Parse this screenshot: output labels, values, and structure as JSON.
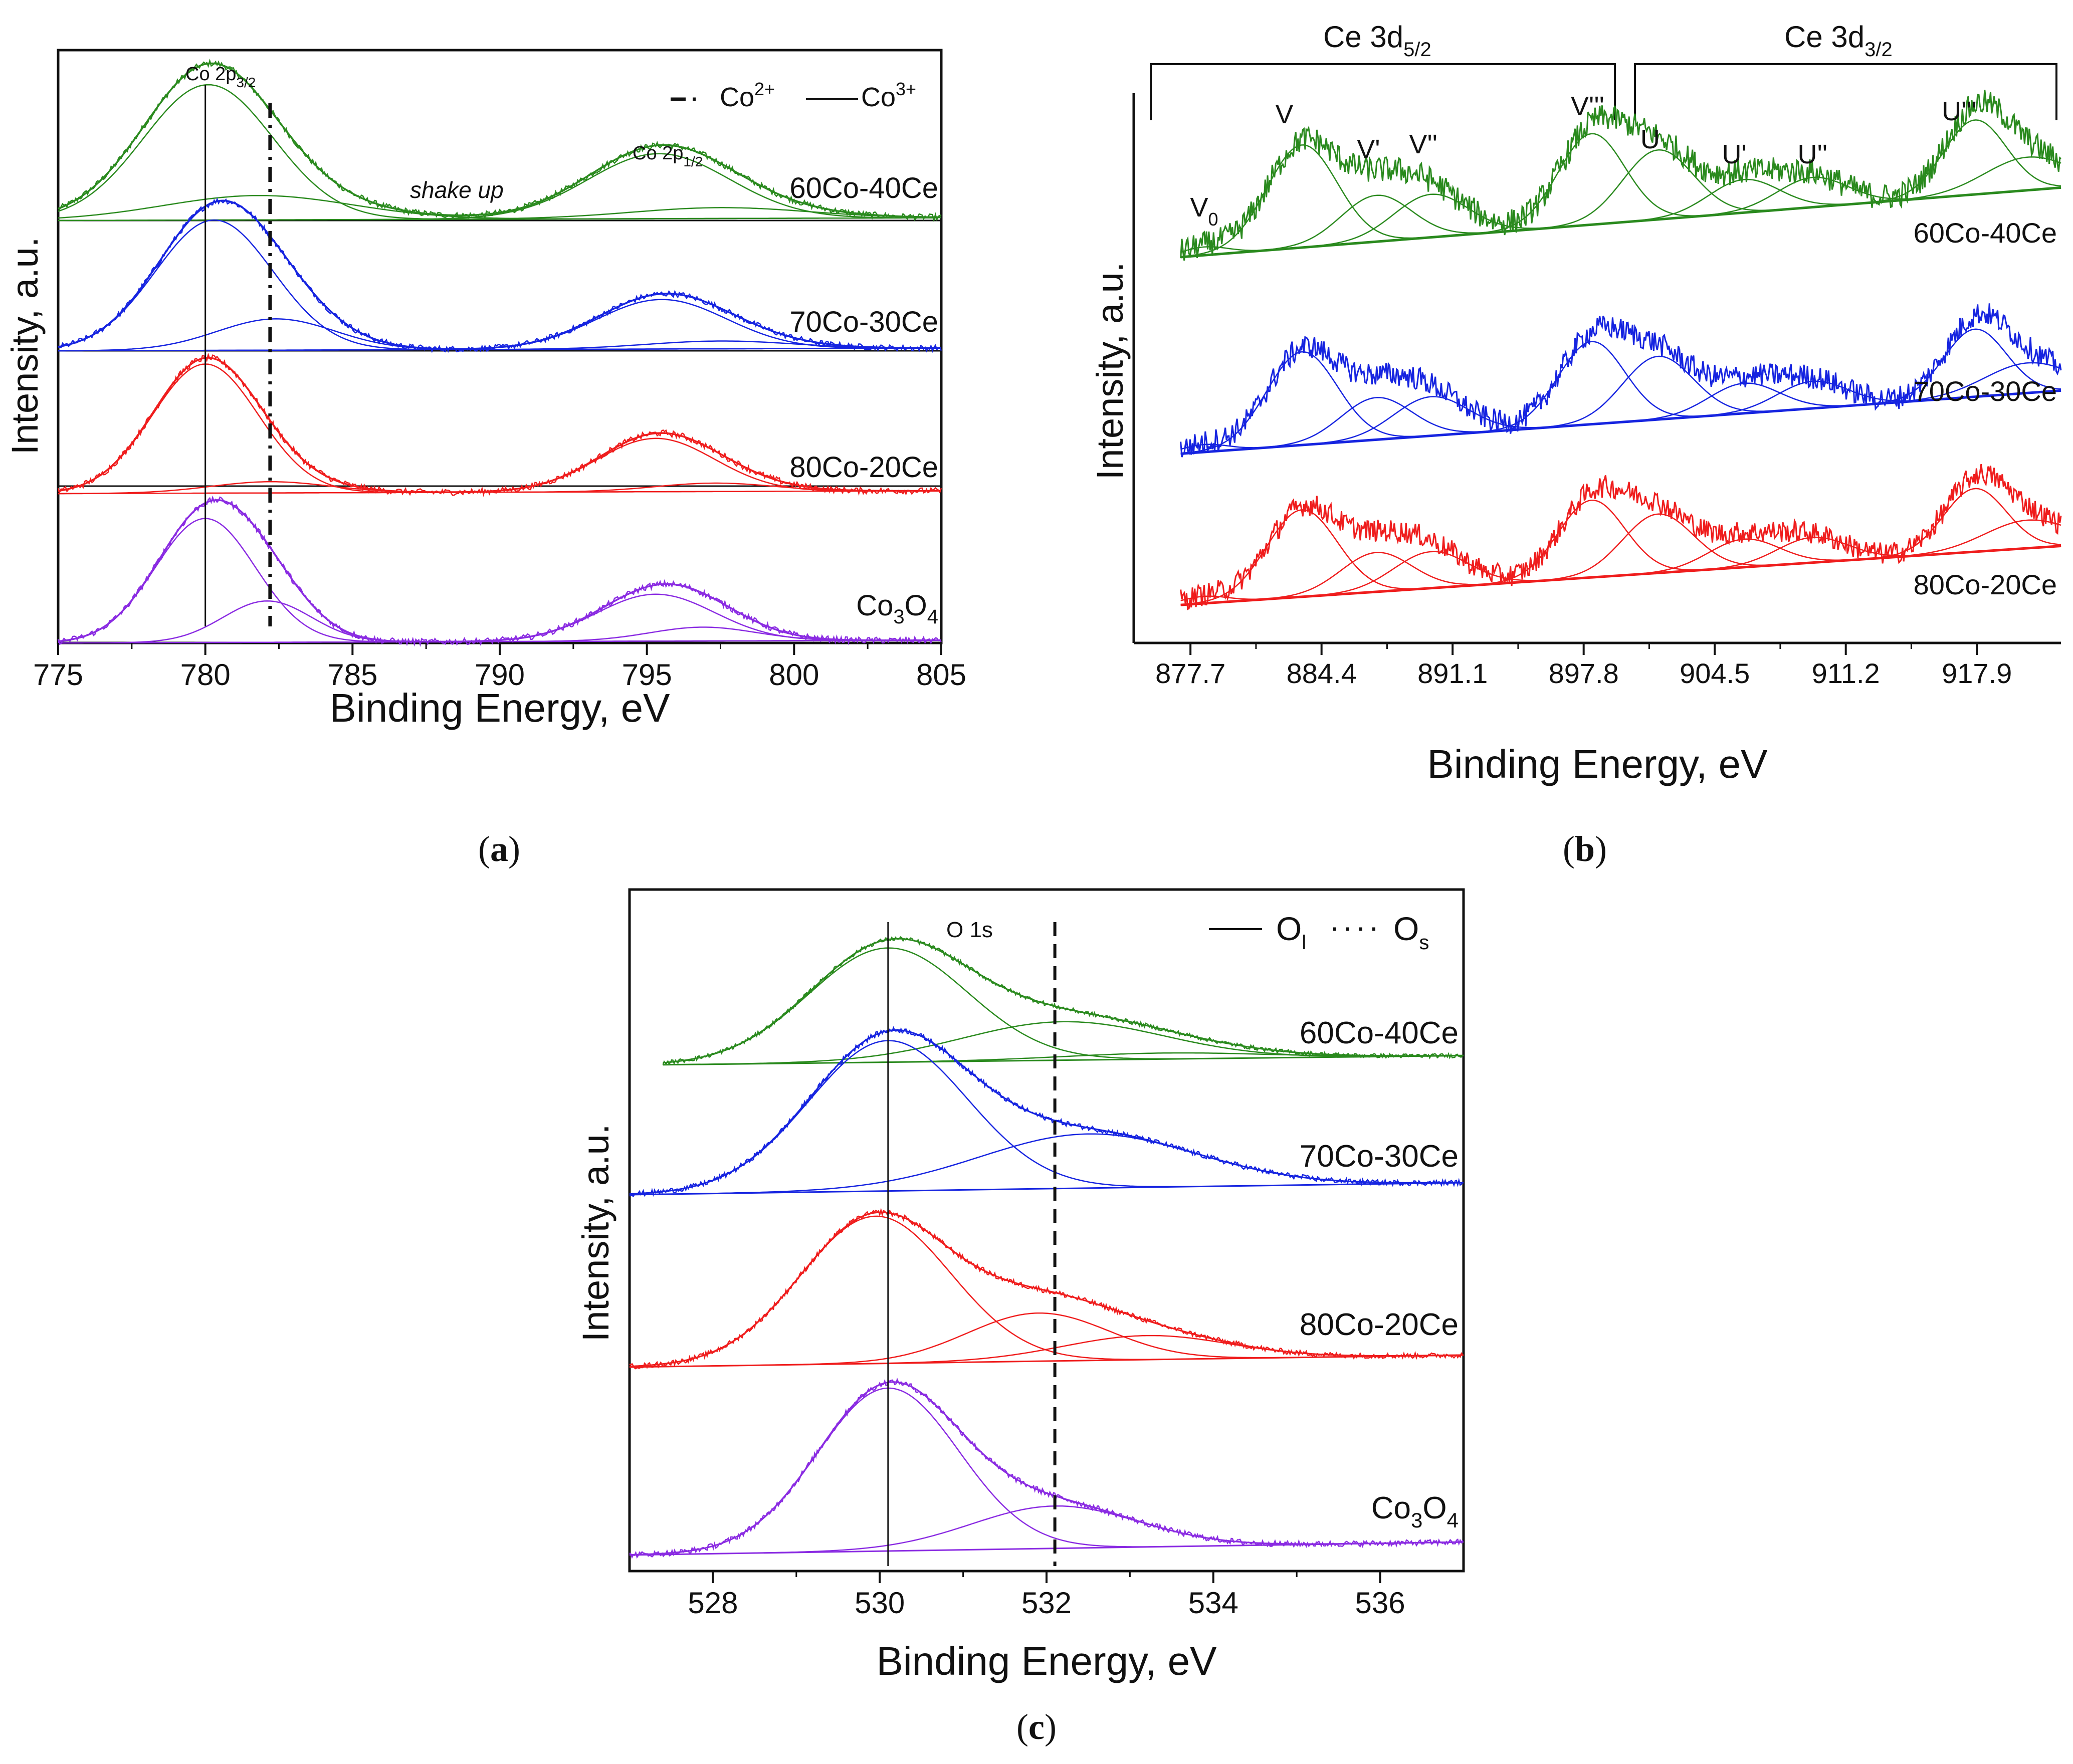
{
  "colors": {
    "sample_60Co_40Ce": "#2a8a1e",
    "sample_70Co_30Ce": "#1624e0",
    "sample_80Co_20Ce": "#ef1d1d",
    "sample_Co3O4": "#8a2be2",
    "axis": "#111111"
  },
  "chart_data": [
    {
      "panel": "(a)",
      "type": "line",
      "xlabel": "Binding Energy, eV",
      "ylabel": "Intensity, a.u.",
      "xlim": [
        775,
        805
      ],
      "xticks": [
        775,
        780,
        785,
        790,
        795,
        800,
        805
      ],
      "peak_labels": {
        "p32_base": "Co 2p",
        "p32_sub": "3/2",
        "p12_base": "Co 2p",
        "p12_sub": "1/2",
        "shake": "shake up"
      },
      "legend": {
        "co2_base": "Co",
        "co2_sup": "2+",
        "co3_base": "Co",
        "co3_sup": "3+",
        "position": "top-right"
      },
      "reference_lines": [
        {
          "x": 780.0,
          "style": "solid",
          "meaning": "Co3+"
        },
        {
          "x": 782.2,
          "style": "dash-dot",
          "meaning": "Co2+"
        }
      ],
      "series": [
        {
          "name": "60Co-40Ce",
          "color_key": "sample_60Co_40Ce",
          "peaks": [
            {
              "center": 780.1,
              "height": 1.0,
              "width": 2.2
            },
            {
              "center": 781.8,
              "height": 0.18,
              "width": 3.2
            },
            {
              "center": 795.4,
              "height": 0.48,
              "width": 2.4
            },
            {
              "center": 797.5,
              "height": 0.08,
              "width": 3.0
            }
          ]
        },
        {
          "name": "70Co-30Ce",
          "color_key": "sample_70Co_30Ce",
          "peaks": [
            {
              "center": 780.3,
              "height": 1.0,
              "width": 2.0
            },
            {
              "center": 782.4,
              "height": 0.24,
              "width": 2.0
            },
            {
              "center": 795.5,
              "height": 0.38,
              "width": 2.2
            },
            {
              "center": 797.5,
              "height": 0.06,
              "width": 2.5
            }
          ]
        },
        {
          "name": "80Co-20Ce",
          "color_key": "sample_80Co_20Ce",
          "peaks": [
            {
              "center": 780.0,
              "height": 0.92,
              "width": 1.8
            },
            {
              "center": 782.2,
              "height": 0.08,
              "width": 2.0
            },
            {
              "center": 795.3,
              "height": 0.38,
              "width": 2.0
            },
            {
              "center": 797.3,
              "height": 0.06,
              "width": 2.0
            }
          ]
        },
        {
          "name": "Co",
          "name_sub": "3",
          "name_tail": "O",
          "name_sub2": "4",
          "color_key": "sample_Co3O4",
          "peaks": [
            {
              "center": 780.0,
              "height": 0.9,
              "width": 1.7
            },
            {
              "center": 782.1,
              "height": 0.3,
              "width": 1.5
            },
            {
              "center": 795.3,
              "height": 0.34,
              "width": 2.0
            },
            {
              "center": 796.9,
              "height": 0.1,
              "width": 1.8
            }
          ]
        }
      ]
    },
    {
      "panel": "(b)",
      "type": "line",
      "xlabel": "Binding Energy, eV",
      "ylabel": "Intensity, a.u.",
      "xlim": [
        874.8,
        922.2
      ],
      "xticks": [
        877.7,
        884.4,
        891.1,
        897.8,
        904.5,
        911.2,
        917.9
      ],
      "region_labels": {
        "d52_base": "Ce 3d",
        "d52_sub": "5/2",
        "d32_base": "Ce 3d",
        "d32_sub": "3/2"
      },
      "peak_labels": [
        {
          "base": "V",
          "sub": "0",
          "x": 878.4
        },
        {
          "base": "V",
          "sub": "",
          "x": 882.5
        },
        {
          "base": "V'",
          "sub": "",
          "x": 886.8
        },
        {
          "base": "V''",
          "sub": "",
          "x": 889.6
        },
        {
          "base": "V'''",
          "sub": "",
          "x": 898.0
        },
        {
          "base": "U",
          "sub": "",
          "x": 901.2
        },
        {
          "base": "U'",
          "sub": "",
          "x": 905.5
        },
        {
          "base": "U''",
          "sub": "",
          "x": 909.5
        },
        {
          "base": "U'''",
          "sub": "",
          "x": 917.0
        }
      ],
      "series": [
        {
          "name": "60Co-40Ce",
          "color_key": "sample_60Co_40Ce"
        },
        {
          "name": "70Co-30Ce",
          "color_key": "sample_70Co_30Ce"
        },
        {
          "name": "80Co-20Ce",
          "color_key": "sample_80Co_20Ce"
        }
      ]
    },
    {
      "panel": "(c)",
      "type": "line",
      "xlabel": "Binding Energy, eV",
      "ylabel": "Intensity, a.u.",
      "xlim": [
        527,
        537
      ],
      "xticks": [
        528,
        530,
        532,
        534,
        536
      ],
      "peak_label": "O 1s",
      "legend": {
        "ol_base": "O",
        "ol_sub": "l",
        "os_base": "O",
        "os_sub": "s",
        "position": "top-right"
      },
      "reference_lines": [
        {
          "x": 530.1,
          "style": "solid",
          "meaning": "O_l"
        },
        {
          "x": 532.1,
          "style": "dashed",
          "meaning": "O_s"
        }
      ],
      "series": [
        {
          "name": "60Co-40Ce",
          "color_key": "sample_60Co_40Ce",
          "peaks": [
            {
              "center": 530.1,
              "height": 0.95,
              "width": 0.95
            },
            {
              "center": 532.2,
              "height": 0.32,
              "width": 1.2
            },
            {
              "center": 533.4,
              "height": 0.05,
              "width": 1.2
            }
          ]
        },
        {
          "name": "70Co-30Ce",
          "color_key": "sample_70Co_30Ce",
          "peaks": [
            {
              "center": 530.1,
              "height": 1.0,
              "width": 0.95
            },
            {
              "center": 532.5,
              "height": 0.36,
              "width": 1.3
            }
          ]
        },
        {
          "name": "80Co-20Ce",
          "color_key": "sample_80Co_20Ce",
          "peaks": [
            {
              "center": 529.95,
              "height": 0.98,
              "width": 0.9
            },
            {
              "center": 531.9,
              "height": 0.32,
              "width": 0.85
            },
            {
              "center": 533.2,
              "height": 0.16,
              "width": 1.0
            }
          ]
        },
        {
          "name": "Co",
          "name_sub": "3",
          "name_tail": "O",
          "name_sub2": "4",
          "color_key": "sample_Co3O4",
          "peaks": [
            {
              "center": 530.1,
              "height": 1.0,
              "width": 0.85
            },
            {
              "center": 532.1,
              "height": 0.26,
              "width": 1.0
            }
          ]
        }
      ]
    }
  ]
}
